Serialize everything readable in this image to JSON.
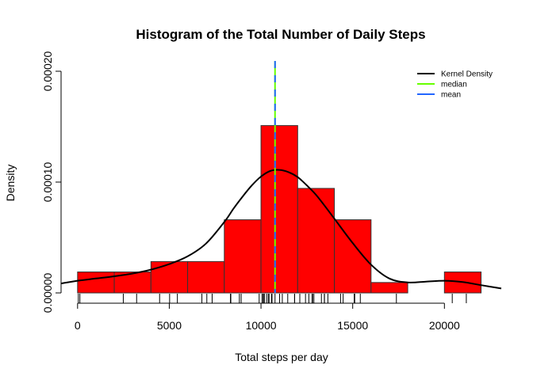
{
  "chart_data": {
    "type": "bar",
    "title": "Histogram of the Total Number of Daily Steps",
    "xlabel": "Total steps per day",
    "ylabel": "Density",
    "xlim": [
      -900,
      23100
    ],
    "ylim": [
      0,
      0.0002
    ],
    "x_ticks": [
      0,
      5000,
      10000,
      15000,
      20000
    ],
    "x_tick_labels": [
      "0",
      "5000",
      "10000",
      "15000",
      "20000"
    ],
    "y_ticks": [
      0,
      0.0001,
      0.0002
    ],
    "y_tick_labels": [
      "0.00000",
      "0.00010",
      "0.00020"
    ],
    "grid": false,
    "legend_position": "top-right",
    "colors": {
      "bar_fill": "#ff0000",
      "bar_stroke": "#333333",
      "density": "#000000",
      "median": "#66ff00",
      "mean": "#2266ff"
    },
    "bins": [
      {
        "start": 0,
        "end": 2000,
        "density": 1.89e-05
      },
      {
        "start": 2000,
        "end": 4000,
        "density": 1.89e-05
      },
      {
        "start": 4000,
        "end": 6000,
        "density": 2.83e-05
      },
      {
        "start": 6000,
        "end": 8000,
        "density": 2.83e-05
      },
      {
        "start": 8000,
        "end": 10000,
        "density": 6.6e-05
      },
      {
        "start": 10000,
        "end": 12000,
        "density": 0.000151
      },
      {
        "start": 12000,
        "end": 14000,
        "density": 9.43e-05
      },
      {
        "start": 14000,
        "end": 16000,
        "density": 6.6e-05
      },
      {
        "start": 16000,
        "end": 18000,
        "density": 9.4e-06
      },
      {
        "start": 18000,
        "end": 20000,
        "density": 0
      },
      {
        "start": 20000,
        "end": 22000,
        "density": 1.89e-05
      }
    ],
    "kernel_density": {
      "name": "Kernel Density",
      "x": [
        -900,
        0,
        1000,
        2000,
        3000,
        4000,
        5000,
        6000,
        7000,
        8000,
        8500,
        9000,
        9500,
        10000,
        10500,
        11000,
        11500,
        12000,
        12500,
        13000,
        13500,
        14000,
        15000,
        16000,
        17000,
        18000,
        19000,
        20000,
        21000,
        22000,
        23100
      ],
      "y": [
        8.5e-06,
        1.1e-05,
        1.3e-05,
        1.5e-05,
        1.75e-05,
        2.1e-05,
        2.6e-05,
        3.3e-05,
        4.45e-05,
        6.4e-05,
        7.6e-05,
        8.7e-05,
        9.7e-05,
        0.000105,
        0.00011,
        0.000111,
        0.000109,
        0.0001045,
        9.7e-05,
        8.85e-05,
        7.8e-05,
        6.7e-05,
        4.5e-05,
        2.55e-05,
        1.3e-05,
        9.5e-06,
        1.02e-05,
        1.1e-05,
        9.8e-06,
        7e-06,
        4e-06
      ]
    },
    "median": {
      "name": "median",
      "value": 10765
    },
    "mean": {
      "name": "mean",
      "value": 10766
    },
    "rug": [
      41,
      126,
      2492,
      3219,
      4472,
      5018,
      5441,
      6778,
      7047,
      7336,
      8334,
      8355,
      8821,
      8918,
      9900,
      10056,
      10119,
      10139,
      10183,
      10304,
      10395,
      10439,
      10571,
      10600,
      10765,
      11015,
      11162,
      11458,
      11829,
      11834,
      12116,
      12426,
      12608,
      12787,
      12811,
      12883,
      13294,
      13452,
      13460,
      13646,
      14339,
      14478,
      15084,
      15098,
      15110,
      15414,
      17382,
      20427,
      21194
    ],
    "legend": [
      {
        "label": "Kernel Density",
        "color": "#000000"
      },
      {
        "label": "median",
        "color": "#66ff00"
      },
      {
        "label": "mean",
        "color": "#2266ff"
      }
    ]
  }
}
